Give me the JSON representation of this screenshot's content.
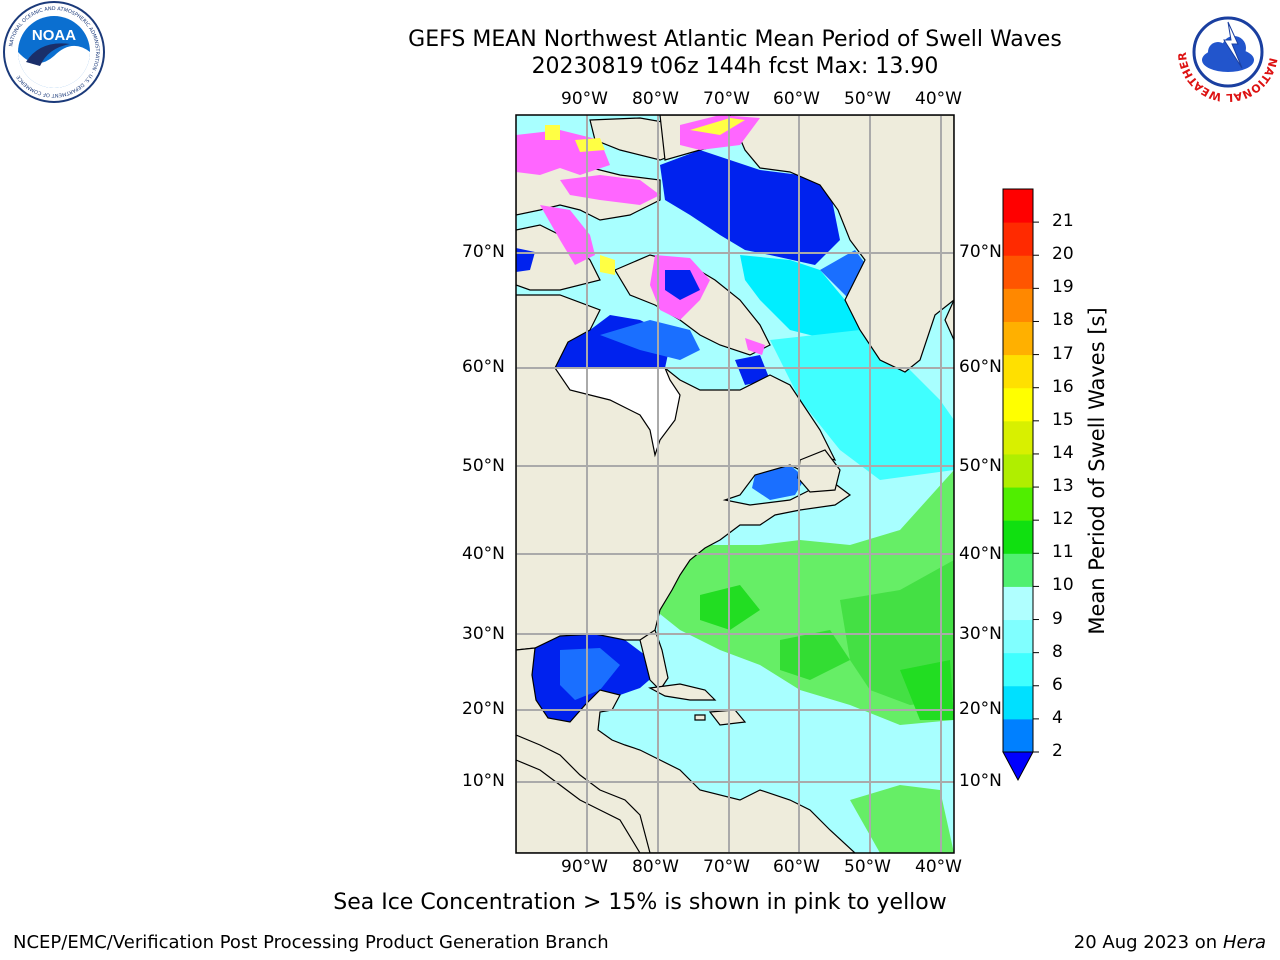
{
  "header": {
    "title_line1": "GEFS MEAN Northwest Atlantic Mean Period of Swell Waves",
    "title_line2": "20230819 t06z 144h fcst   Max: 13.90"
  },
  "logos": {
    "left": "NOAA",
    "left_ring": "NATIONAL OCEANIC AND ATMOSPHERIC ADMINISTRATION · U.S. DEPARTMENT OF COMMERCE",
    "right_ring": "NATIONAL WEATHER SERVICE"
  },
  "map": {
    "lon_labels": [
      "90°W",
      "80°W",
      "70°W",
      "60°W",
      "50°W",
      "40°W"
    ],
    "lat_labels": [
      "70°N",
      "60°N",
      "50°N",
      "40°N",
      "30°N",
      "20°N",
      "10°N"
    ],
    "colors": {
      "land": "#eeecdc",
      "ice_pink": "#ff66ff",
      "ice_yellow": "#ffff44",
      "deep_blue": "#0022ee",
      "mid_blue": "#1a6fff",
      "cyan": "#00eeff",
      "light_cyan": "#a8ffff",
      "green": "#66ee66",
      "bright_green": "#22dd22",
      "gridline": "#aaaaaa"
    }
  },
  "colorbar": {
    "title": "Mean Period of Swell Waves [s]",
    "ticks": [
      "2",
      "4",
      "6",
      "8",
      "9",
      "10",
      "11",
      "12",
      "13",
      "14",
      "15",
      "16",
      "17",
      "18",
      "19",
      "20",
      "21"
    ],
    "colors": [
      "#0080ff",
      "#00e0ff",
      "#40ffff",
      "#80ffff",
      "#b0ffff",
      "#50f070",
      "#10e010",
      "#50ee00",
      "#b0ee00",
      "#d8f000",
      "#ffff00",
      "#ffe000",
      "#ffb000",
      "#ff8800",
      "#ff5500",
      "#ff2a00",
      "#ff0000"
    ],
    "under_color": "#0000ff"
  },
  "footer": {
    "note": "Sea Ice Concentration > 15% is shown in pink to yellow",
    "left": "NCEP/EMC/Verification Post Processing Product Generation Branch",
    "date": "20 Aug 2023 on",
    "machine": "Hera"
  }
}
